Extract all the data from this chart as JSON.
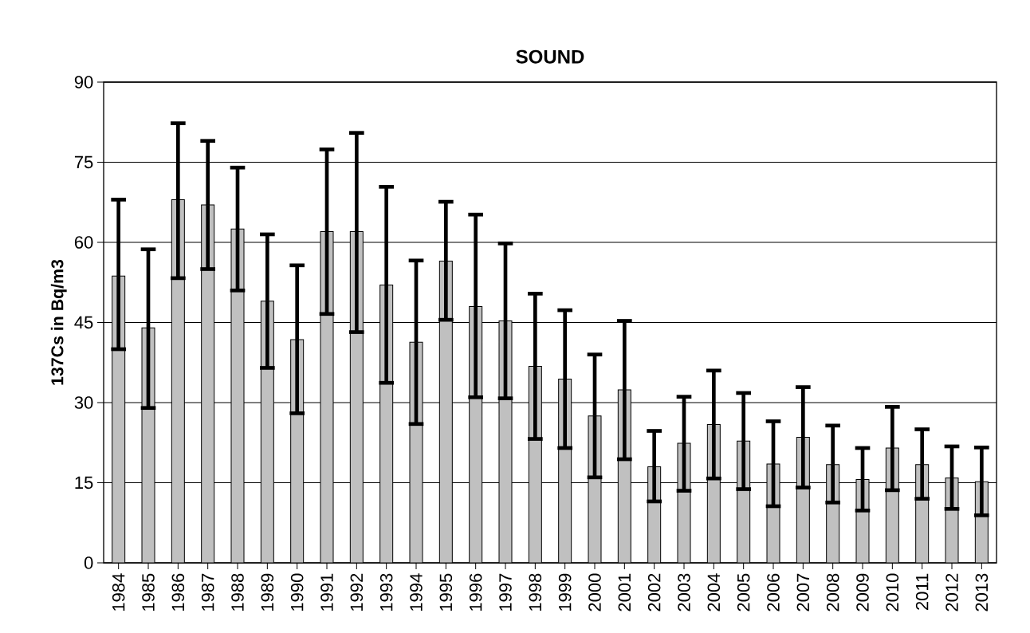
{
  "chart_data": {
    "type": "bar",
    "title": "SOUND",
    "ylabel": "137Cs in Bq/m3",
    "categories": [
      "1984",
      "1985",
      "1986",
      "1987",
      "1988",
      "1989",
      "1990",
      "1991",
      "1992",
      "1993",
      "1994",
      "1995",
      "1996",
      "1997",
      "1998",
      "1999",
      "2000",
      "2001",
      "2002",
      "2003",
      "2004",
      "2005",
      "2006",
      "2007",
      "2008",
      "2009",
      "2010",
      "2011",
      "2012",
      "2013"
    ],
    "values": [
      53.7,
      44,
      68,
      67,
      62.5,
      49,
      41.8,
      62,
      62,
      52,
      41.3,
      56.5,
      48,
      45.3,
      36.8,
      34.4,
      27.5,
      32.4,
      18,
      22.4,
      25.9,
      22.8,
      18.5,
      23.5,
      18.4,
      15.6,
      21.5,
      18.4,
      15.9,
      15.2
    ],
    "errors": [
      [
        40,
        68
      ],
      [
        29,
        58.7
      ],
      [
        53.3,
        82.3
      ],
      [
        55,
        79
      ],
      [
        51,
        74
      ],
      [
        36.5,
        61.5
      ],
      [
        28,
        55.7
      ],
      [
        46.6,
        77.4
      ],
      [
        43.2,
        80.5
      ],
      [
        33.7,
        70.4
      ],
      [
        26,
        56.6
      ],
      [
        45.5,
        67.6
      ],
      [
        31,
        65.2
      ],
      [
        30.8,
        59.8
      ],
      [
        23.2,
        50.4
      ],
      [
        21.5,
        47.3
      ],
      [
        16,
        39
      ],
      [
        19.4,
        45.3
      ],
      [
        11.5,
        24.7
      ],
      [
        13.5,
        31.1
      ],
      [
        15.8,
        36
      ],
      [
        13.8,
        31.8
      ],
      [
        10.6,
        26.5
      ],
      [
        14.1,
        32.9
      ],
      [
        11.3,
        25.7
      ],
      [
        9.8,
        21.5
      ],
      [
        13.6,
        29.2
      ],
      [
        12,
        25
      ],
      [
        10.1,
        21.8
      ],
      [
        8.9,
        21.6
      ]
    ],
    "color": "#c0c0c0",
    "ylim": [
      0,
      90
    ],
    "yticks": [
      0,
      15,
      30,
      45,
      60,
      75,
      90
    ],
    "grid": "y"
  }
}
